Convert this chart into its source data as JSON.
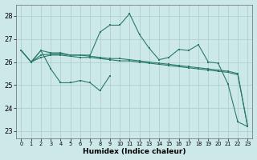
{
  "xlabel": "Humidex (Indice chaleur)",
  "background_color": "#cde8e8",
  "grid_color": "#aacccc",
  "line_color": "#2a7a6a",
  "xlim": [
    -0.5,
    23.5
  ],
  "ylim": [
    22.7,
    28.5
  ],
  "yticks": [
    23,
    24,
    25,
    26,
    27,
    28
  ],
  "xticks": [
    0,
    1,
    2,
    3,
    4,
    5,
    6,
    7,
    8,
    9,
    10,
    11,
    12,
    13,
    14,
    15,
    16,
    17,
    18,
    19,
    20,
    21,
    22,
    23
  ],
  "series_peaked": {
    "x": [
      0,
      1,
      2,
      3,
      4,
      5,
      6,
      7,
      8,
      9,
      10,
      11,
      12,
      13,
      14,
      15,
      16,
      17,
      18,
      19,
      20,
      21,
      22,
      23
    ],
    "y": [
      26.5,
      26.0,
      26.5,
      26.4,
      26.4,
      26.3,
      26.3,
      26.3,
      27.3,
      27.6,
      27.6,
      28.1,
      27.2,
      26.6,
      26.1,
      26.2,
      26.55,
      26.5,
      26.75,
      26.0,
      25.95,
      25.05,
      23.4,
      23.2
    ]
  },
  "series_flat_high": {
    "x": [
      0,
      1,
      2,
      3,
      4,
      5,
      6,
      7,
      8,
      9,
      10,
      11,
      12,
      13,
      14,
      15,
      16,
      17,
      18,
      19,
      20,
      21,
      22,
      23
    ],
    "y": [
      26.5,
      26.0,
      26.3,
      26.35,
      26.35,
      26.3,
      26.3,
      26.25,
      26.2,
      26.15,
      26.15,
      26.1,
      26.05,
      26.0,
      25.95,
      25.9,
      25.85,
      25.8,
      25.75,
      25.7,
      25.65,
      25.6,
      25.5,
      23.2
    ]
  },
  "series_flat_low": {
    "x": [
      0,
      1,
      2,
      3,
      4,
      5,
      6,
      7,
      8,
      9,
      10,
      11,
      12,
      13,
      14,
      15,
      16,
      17,
      18,
      19,
      20,
      21,
      22,
      23
    ],
    "y": [
      26.5,
      26.0,
      26.2,
      26.3,
      26.3,
      26.25,
      26.2,
      26.2,
      26.15,
      26.1,
      26.05,
      26.05,
      26.0,
      25.95,
      25.9,
      25.85,
      25.8,
      25.75,
      25.7,
      25.65,
      25.6,
      25.55,
      25.45,
      23.2
    ]
  },
  "series_zigzag": {
    "x": [
      1,
      2,
      3,
      4,
      5,
      6,
      7,
      8,
      9
    ],
    "y": [
      26.0,
      26.5,
      25.7,
      25.1,
      25.1,
      25.2,
      25.1,
      24.75,
      25.4
    ]
  }
}
